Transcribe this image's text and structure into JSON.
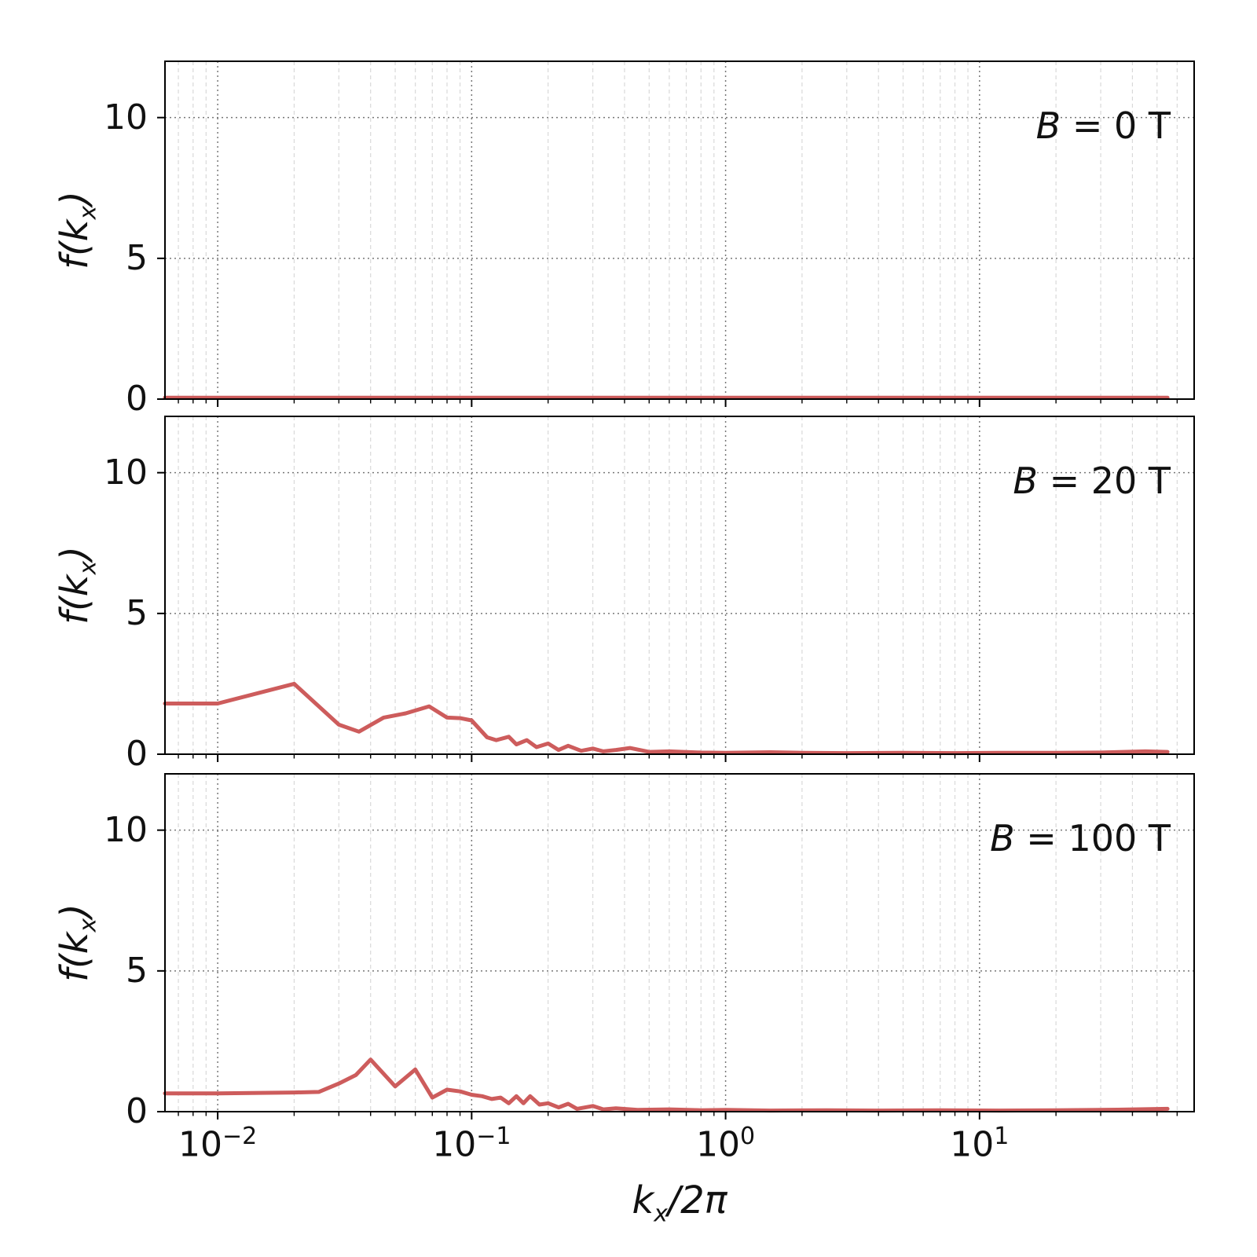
{
  "figure": {
    "background": "#ffffff",
    "frame_color": "#000000"
  },
  "chart_data": {
    "type": "line",
    "xscale": "log",
    "xlim": [
      0.0062,
      70
    ],
    "ylim": [
      0,
      12
    ],
    "line_color": "#cd5c5c",
    "grid": {
      "major_color": "#777777",
      "minor_color": "#d9d9d9"
    },
    "xlabel": {
      "pre": "k",
      "sub": "x",
      "post": "/2π"
    },
    "ylabel": {
      "pre": "f(k",
      "sub": "x",
      "post": ")"
    },
    "xticks": [
      {
        "value": 0.01,
        "base": "10",
        "exp": "−2"
      },
      {
        "value": 0.1,
        "base": "10",
        "exp": "−1"
      },
      {
        "value": 1,
        "base": "10",
        "exp": "0"
      },
      {
        "value": 10,
        "base": "10",
        "exp": "1"
      }
    ],
    "yticks": [
      {
        "value": 0,
        "label": "0"
      },
      {
        "value": 5,
        "label": "5"
      },
      {
        "value": 10,
        "label": "10"
      }
    ],
    "panels": [
      {
        "label_var": "B",
        "label_rest": " = 0 T",
        "x": [
          0.0062,
          0.01,
          0.05,
          0.1,
          0.5,
          1,
          5,
          10,
          30,
          55
        ],
        "y": [
          0.05,
          0.05,
          0.05,
          0.05,
          0.05,
          0.05,
          0.05,
          0.05,
          0.05,
          0.05
        ]
      },
      {
        "label_var": "B",
        "label_rest": " = 20 T",
        "x": [
          0.0062,
          0.01,
          0.02,
          0.03,
          0.036,
          0.045,
          0.055,
          0.068,
          0.08,
          0.09,
          0.1,
          0.115,
          0.125,
          0.14,
          0.15,
          0.165,
          0.18,
          0.2,
          0.22,
          0.24,
          0.27,
          0.3,
          0.33,
          0.37,
          0.42,
          0.5,
          0.6,
          0.8,
          1,
          1.5,
          2,
          3,
          5,
          8,
          12,
          20,
          30,
          45,
          55
        ],
        "y": [
          1.8,
          1.8,
          2.5,
          1.05,
          0.8,
          1.3,
          1.45,
          1.7,
          1.3,
          1.28,
          1.2,
          0.6,
          0.5,
          0.62,
          0.35,
          0.5,
          0.25,
          0.38,
          0.15,
          0.3,
          0.12,
          0.2,
          0.1,
          0.15,
          0.22,
          0.08,
          0.1,
          0.06,
          0.05,
          0.07,
          0.05,
          0.04,
          0.05,
          0.04,
          0.05,
          0.05,
          0.06,
          0.1,
          0.08
        ]
      },
      {
        "label_var": "B",
        "label_rest": " = 100 T",
        "x": [
          0.0062,
          0.01,
          0.02,
          0.025,
          0.03,
          0.035,
          0.04,
          0.05,
          0.06,
          0.07,
          0.08,
          0.09,
          0.1,
          0.11,
          0.12,
          0.13,
          0.14,
          0.15,
          0.16,
          0.17,
          0.185,
          0.2,
          0.22,
          0.24,
          0.26,
          0.3,
          0.33,
          0.37,
          0.45,
          0.6,
          0.8,
          1,
          1.5,
          2.5,
          4,
          7,
          12,
          20,
          35,
          55
        ],
        "y": [
          0.65,
          0.65,
          0.68,
          0.7,
          1.0,
          1.3,
          1.85,
          0.9,
          1.5,
          0.5,
          0.78,
          0.72,
          0.6,
          0.55,
          0.45,
          0.5,
          0.3,
          0.55,
          0.3,
          0.55,
          0.25,
          0.3,
          0.15,
          0.28,
          0.1,
          0.2,
          0.08,
          0.12,
          0.06,
          0.08,
          0.05,
          0.06,
          0.04,
          0.05,
          0.04,
          0.05,
          0.04,
          0.05,
          0.07,
          0.1
        ]
      }
    ]
  }
}
